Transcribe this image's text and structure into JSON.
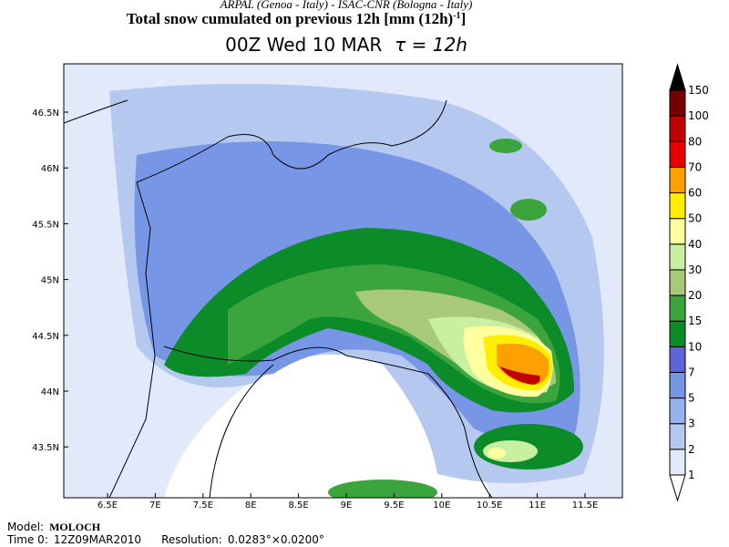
{
  "header": {
    "credit": "ARPAL (Genoa - Italy)  -  ISAC-CNR (Bologna - Italy)",
    "title": "Total snow cumulated on previous 12h [mm (12h)",
    "title_sup": "-1",
    "title_end": "]",
    "subtitle": "00Z Wed 10 MAR",
    "tau": "τ = 12h"
  },
  "map": {
    "lon_ticks": [
      "6.5E",
      "7E",
      "7.5E",
      "8E",
      "8.5E",
      "9E",
      "9.5E",
      "10E",
      "10.5E",
      "11E",
      "11.5E"
    ],
    "lat_ticks": [
      "46.5N",
      "46N",
      "45.5N",
      "45N",
      "44.5N",
      "44N",
      "43.5N"
    ]
  },
  "colorbar": {
    "levels": [
      "1",
      "2",
      "3",
      "5",
      "7",
      "10",
      "15",
      "20",
      "30",
      "40",
      "50",
      "60",
      "70",
      "80",
      "100",
      "150"
    ],
    "colors": [
      "#ffffff",
      "#e1e9fa",
      "#b5c9f0",
      "#96b2ee",
      "#7896e6",
      "#5c64dc",
      "#0c8c28",
      "#3ca43c",
      "#a8c87a",
      "#c8f0a0",
      "#ffffa0",
      "#ffee00",
      "#ffa000",
      "#e60000",
      "#c00000",
      "#780000",
      "#000000"
    ]
  },
  "footer": {
    "model_label": "Model:",
    "model": "MOLOCH",
    "time_label": "Time 0:",
    "time": "12Z09MAR2010",
    "res_label": "Resolution:",
    "res": "0.0283°×0.0200°"
  }
}
